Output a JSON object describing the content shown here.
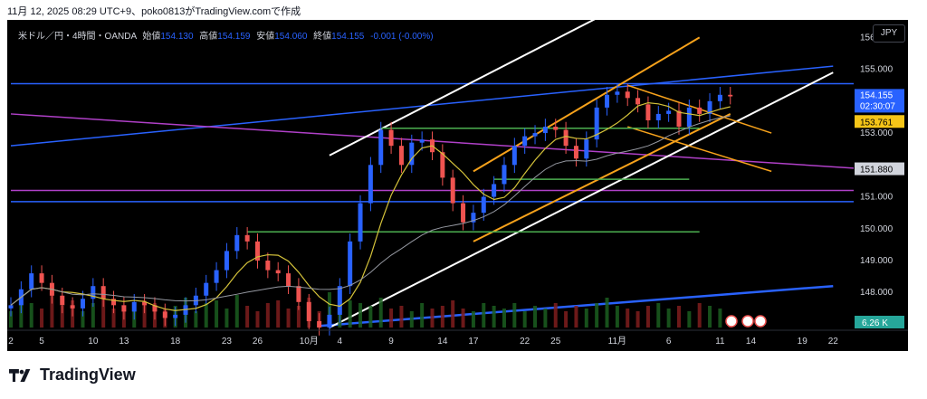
{
  "header": {
    "caption": "11月 12, 2025 08:29 UTC+9、poko0813がTradingView.comで作成"
  },
  "legend": {
    "symbol": "米ドル／円・4時間・OANDA",
    "open_label": "始値",
    "open": "154.130",
    "high_label": "高値",
    "high": "154.159",
    "low_label": "安値",
    "low": "154.060",
    "close_label": "終値",
    "close": "154.155",
    "change": "-0.001 (-0.00%)"
  },
  "currency": "JPY",
  "footer": {
    "brand": "TradingView"
  },
  "chart_data": {
    "type": "candlestick",
    "ylim": [
      146.9,
      156.55
    ],
    "y_ticks": [
      149.0,
      150.0,
      151.0,
      153.0,
      155.0,
      156.0,
      148.0
    ],
    "y_tick_labels": [
      "149.000",
      "150.000",
      "151.000",
      "153.000",
      "155.000",
      "156.000",
      "148.000"
    ],
    "x_ticks": [
      {
        "label": "2",
        "x": 0
      },
      {
        "label": "5",
        "x": 3
      },
      {
        "label": "10",
        "x": 8
      },
      {
        "label": "13",
        "x": 11
      },
      {
        "label": "18",
        "x": 16
      },
      {
        "label": "23",
        "x": 21
      },
      {
        "label": "26",
        "x": 24
      },
      {
        "label": "10月",
        "x": 29
      },
      {
        "label": "4",
        "x": 32
      },
      {
        "label": "9",
        "x": 37
      },
      {
        "label": "14",
        "x": 42
      },
      {
        "label": "17",
        "x": 45
      },
      {
        "label": "22",
        "x": 50
      },
      {
        "label": "25",
        "x": 53
      },
      {
        "label": "11月",
        "x": 59
      },
      {
        "label": "6",
        "x": 64
      },
      {
        "label": "11",
        "x": 69
      },
      {
        "label": "14",
        "x": 72
      },
      {
        "label": "19",
        "x": 77
      },
      {
        "label": "22",
        "x": 80
      }
    ],
    "price_labels": {
      "last": "154.155",
      "countdown": "02:30:07",
      "level": "153.761",
      "level2": "151.880",
      "volume": "6.26 K"
    },
    "colors": {
      "up": "#2962ff",
      "down": "#ef5350",
      "ma_fast": "#d4c23a",
      "ma_slow": "#9598a1",
      "channel_white": "#ffffff",
      "channel_orange": "#f7a21b",
      "support_green": "#4caf50",
      "line_blue": "#2962ff",
      "line_purple": "#b040c8"
    },
    "series_close": [
      147.6,
      148.1,
      148.6,
      148.3,
      147.9,
      147.6,
      147.5,
      147.8,
      148.2,
      147.8,
      147.6,
      147.4,
      147.7,
      147.6,
      147.4,
      147.2,
      147.3,
      147.6,
      147.9,
      148.3,
      148.7,
      149.3,
      149.8,
      149.6,
      149.0,
      148.7,
      148.6,
      148.2,
      147.7,
      147.1,
      146.9,
      147.3,
      148.2,
      149.6,
      150.8,
      152.0,
      153.1,
      152.6,
      152.0,
      152.7,
      152.8,
      152.4,
      151.6,
      150.8,
      150.2,
      150.5,
      151.0,
      151.4,
      152.0,
      152.6,
      152.9,
      153.0,
      153.2,
      153.1,
      152.6,
      152.2,
      152.8,
      153.8,
      154.2,
      154.3,
      154.1,
      153.9,
      153.4,
      153.6,
      153.7,
      153.2,
      153.8,
      153.6,
      154.0,
      154.2,
      154.15
    ],
    "volume_pct": [
      30,
      55,
      45,
      35,
      60,
      40,
      50,
      30,
      45,
      55,
      35,
      40,
      30,
      50,
      45,
      35,
      40,
      55,
      30,
      45,
      50,
      35,
      60,
      40,
      30,
      45,
      50,
      35,
      40,
      55,
      30,
      65,
      70,
      50,
      45,
      40,
      55,
      35,
      40,
      30,
      45,
      35,
      40,
      50,
      35,
      30,
      45,
      40,
      35,
      45,
      30,
      40,
      35,
      45,
      30,
      40,
      35,
      45,
      55,
      40,
      35,
      30,
      40,
      45,
      35,
      40,
      30,
      45,
      40,
      35,
      20
    ]
  }
}
